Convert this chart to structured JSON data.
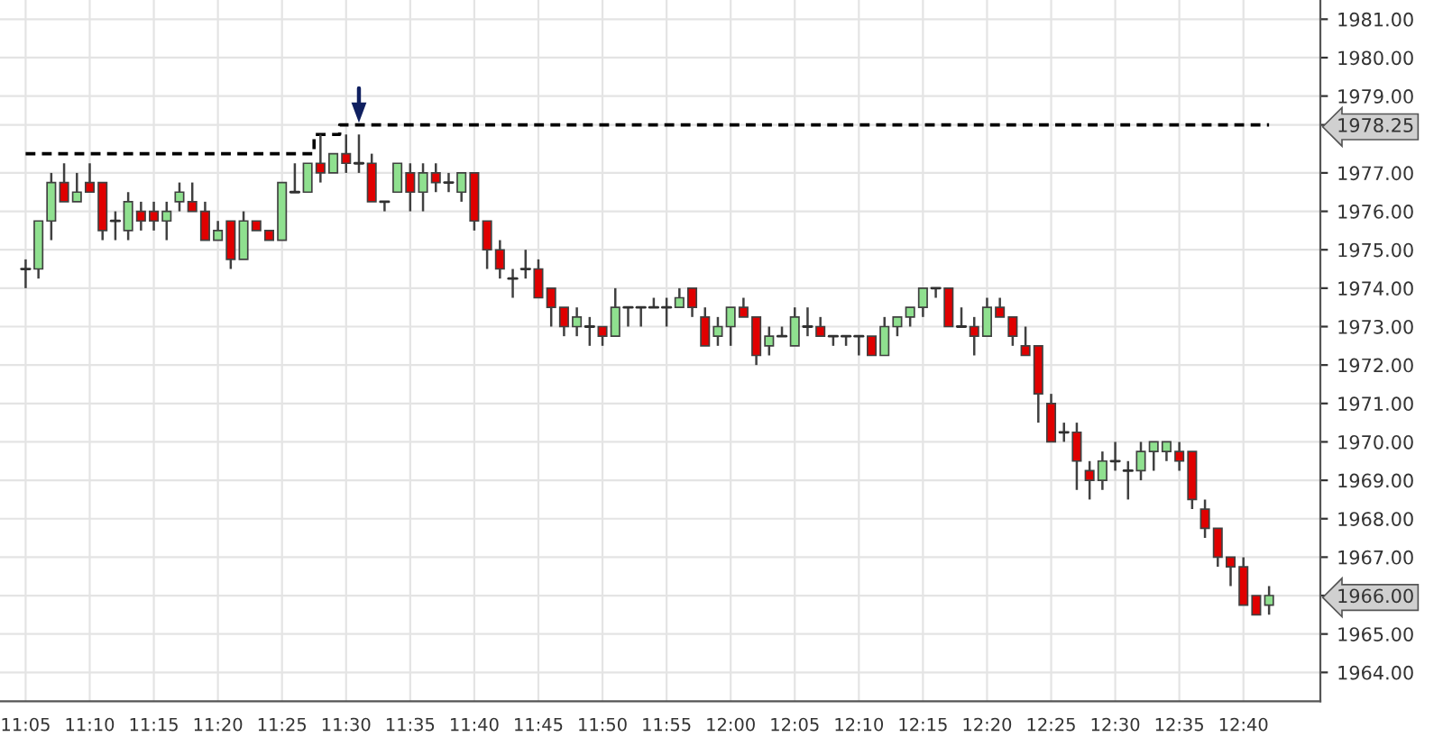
{
  "chart_data": {
    "type": "candlestick",
    "categories": [
      "11:05",
      null,
      null,
      null,
      null,
      "11:10",
      null,
      null,
      null,
      null,
      "11:15",
      null,
      null,
      null,
      null,
      "11:20",
      null,
      null,
      null,
      null,
      "11:25",
      null,
      null,
      null,
      null,
      "11:30",
      null,
      null,
      null,
      null,
      "11:35",
      null,
      null,
      null,
      null,
      "11:40",
      null,
      null,
      null,
      null,
      "11:45",
      null,
      null,
      null,
      null,
      "11:50",
      null,
      null,
      null,
      null,
      "11:55",
      null,
      null,
      null,
      null,
      "12:00",
      null,
      null,
      null,
      null,
      "12:05",
      null,
      null,
      null,
      null,
      "12:10",
      null,
      null,
      null,
      null,
      "12:15",
      null,
      null,
      null,
      null,
      "12:20",
      null,
      null,
      null,
      null,
      "12:25",
      null,
      null,
      null,
      null,
      "12:30",
      null,
      null,
      null,
      null,
      "12:35",
      null,
      null,
      null,
      null,
      "12:40",
      null,
      null
    ],
    "ohlc": [
      [
        1974.5,
        1974.75,
        1974.0,
        1974.5
      ],
      [
        1974.5,
        1975.75,
        1974.25,
        1975.75
      ],
      [
        1975.75,
        1977.0,
        1975.25,
        1976.75
      ],
      [
        1976.75,
        1977.25,
        1976.25,
        1976.25
      ],
      [
        1976.25,
        1977.0,
        1976.25,
        1976.5
      ],
      [
        1976.75,
        1977.25,
        1976.5,
        1976.5
      ],
      [
        1976.75,
        1976.75,
        1975.25,
        1975.5
      ],
      [
        1975.75,
        1976.0,
        1975.25,
        1975.75
      ],
      [
        1975.5,
        1976.5,
        1975.25,
        1976.25
      ],
      [
        1976.0,
        1976.25,
        1975.5,
        1975.75
      ],
      [
        1976.0,
        1976.25,
        1975.5,
        1975.75
      ],
      [
        1975.75,
        1976.25,
        1975.25,
        1976.0
      ],
      [
        1976.25,
        1976.75,
        1976.0,
        1976.5
      ],
      [
        1976.25,
        1976.75,
        1976.0,
        1976.0
      ],
      [
        1976.0,
        1976.25,
        1975.25,
        1975.25
      ],
      [
        1975.25,
        1975.75,
        1975.25,
        1975.5
      ],
      [
        1975.75,
        1975.75,
        1974.5,
        1974.75
      ],
      [
        1974.75,
        1976.0,
        1974.75,
        1975.75
      ],
      [
        1975.75,
        1975.75,
        1975.5,
        1975.5
      ],
      [
        1975.5,
        1975.5,
        1975.25,
        1975.25
      ],
      [
        1975.25,
        1976.75,
        1975.25,
        1976.75
      ],
      [
        1976.5,
        1977.25,
        1976.5,
        1976.5
      ],
      [
        1976.5,
        1977.25,
        1976.5,
        1977.25
      ],
      [
        1977.25,
        1978.0,
        1976.75,
        1977.0
      ],
      [
        1977.0,
        1977.5,
        1977.0,
        1977.5
      ],
      [
        1977.5,
        1978.0,
        1977.0,
        1977.25
      ],
      [
        1977.25,
        1978.0,
        1977.0,
        1977.25
      ],
      [
        1977.25,
        1977.5,
        1976.25,
        1976.25
      ],
      [
        1976.25,
        1976.25,
        1976.0,
        1976.25
      ],
      [
        1976.5,
        1977.25,
        1976.5,
        1977.25
      ],
      [
        1977.0,
        1977.25,
        1976.0,
        1976.5
      ],
      [
        1976.5,
        1977.25,
        1976.0,
        1977.0
      ],
      [
        1977.0,
        1977.25,
        1976.5,
        1976.75
      ],
      [
        1976.75,
        1977.0,
        1976.5,
        1976.75
      ],
      [
        1976.5,
        1977.0,
        1976.25,
        1977.0
      ],
      [
        1977.0,
        1977.0,
        1975.5,
        1975.75
      ],
      [
        1975.75,
        1975.75,
        1974.5,
        1975.0
      ],
      [
        1975.0,
        1975.25,
        1974.25,
        1974.5
      ],
      [
        1974.25,
        1974.5,
        1973.75,
        1974.25
      ],
      [
        1974.5,
        1975.0,
        1974.25,
        1974.5
      ],
      [
        1974.5,
        1974.75,
        1973.75,
        1973.75
      ],
      [
        1974.0,
        1974.0,
        1973.0,
        1973.5
      ],
      [
        1973.5,
        1973.5,
        1972.75,
        1973.0
      ],
      [
        1973.0,
        1973.5,
        1972.75,
        1973.25
      ],
      [
        1973.0,
        1973.25,
        1972.5,
        1973.0
      ],
      [
        1973.0,
        1973.0,
        1972.5,
        1972.75
      ],
      [
        1972.75,
        1974.0,
        1972.75,
        1973.5
      ],
      [
        1973.5,
        1973.5,
        1973.0,
        1973.5
      ],
      [
        1973.5,
        1973.5,
        1973.0,
        1973.5
      ],
      [
        1973.5,
        1973.75,
        1973.5,
        1973.5
      ],
      [
        1973.5,
        1973.75,
        1973.0,
        1973.5
      ],
      [
        1973.5,
        1974.0,
        1973.5,
        1973.75
      ],
      [
        1974.0,
        1974.0,
        1973.25,
        1973.5
      ],
      [
        1973.25,
        1973.5,
        1972.5,
        1972.5
      ],
      [
        1972.75,
        1973.25,
        1972.5,
        1973.0
      ],
      [
        1973.0,
        1973.5,
        1972.5,
        1973.5
      ],
      [
        1973.5,
        1973.75,
        1973.25,
        1973.25
      ],
      [
        1973.25,
        1973.25,
        1972.0,
        1972.25
      ],
      [
        1972.5,
        1973.0,
        1972.25,
        1972.75
      ],
      [
        1972.75,
        1973.0,
        1972.75,
        1972.75
      ],
      [
        1972.5,
        1973.5,
        1972.5,
        1973.25
      ],
      [
        1973.0,
        1973.5,
        1972.75,
        1973.0
      ],
      [
        1973.0,
        1973.25,
        1972.75,
        1972.75
      ],
      [
        1972.75,
        1972.75,
        1972.5,
        1972.75
      ],
      [
        1972.75,
        1972.75,
        1972.5,
        1972.75
      ],
      [
        1972.75,
        1972.75,
        1972.25,
        1972.75
      ],
      [
        1972.75,
        1972.75,
        1972.25,
        1972.25
      ],
      [
        1972.25,
        1973.25,
        1972.25,
        1973.0
      ],
      [
        1973.0,
        1973.25,
        1972.75,
        1973.25
      ],
      [
        1973.25,
        1973.5,
        1973.0,
        1973.5
      ],
      [
        1973.5,
        1974.0,
        1973.25,
        1974.0
      ],
      [
        1974.0,
        1974.0,
        1973.75,
        1974.0
      ],
      [
        1974.0,
        1974.0,
        1973.0,
        1973.0
      ],
      [
        1973.0,
        1973.5,
        1973.0,
        1973.0
      ],
      [
        1973.0,
        1973.25,
        1972.25,
        1972.75
      ],
      [
        1972.75,
        1973.75,
        1972.75,
        1973.5
      ],
      [
        1973.5,
        1973.75,
        1973.25,
        1973.25
      ],
      [
        1973.25,
        1973.25,
        1972.5,
        1972.75
      ],
      [
        1972.5,
        1973.0,
        1972.25,
        1972.25
      ],
      [
        1972.5,
        1972.5,
        1970.5,
        1971.25
      ],
      [
        1971.0,
        1971.25,
        1970.0,
        1970.0
      ],
      [
        1970.25,
        1970.5,
        1970.0,
        1970.25
      ],
      [
        1970.25,
        1970.5,
        1968.75,
        1969.5
      ],
      [
        1969.25,
        1969.5,
        1968.5,
        1969.0
      ],
      [
        1969.0,
        1969.75,
        1968.75,
        1969.5
      ],
      [
        1969.5,
        1970.0,
        1969.25,
        1969.5
      ],
      [
        1969.25,
        1969.5,
        1968.5,
        1969.25
      ],
      [
        1969.25,
        1970.0,
        1969.0,
        1969.75
      ],
      [
        1969.75,
        1970.0,
        1969.25,
        1970.0
      ],
      [
        1969.75,
        1970.0,
        1969.5,
        1970.0
      ],
      [
        1969.75,
        1970.0,
        1969.25,
        1969.5
      ],
      [
        1969.75,
        1969.75,
        1968.25,
        1968.5
      ],
      [
        1968.25,
        1968.5,
        1967.5,
        1967.75
      ],
      [
        1967.75,
        1967.75,
        1966.75,
        1967.0
      ],
      [
        1967.0,
        1967.0,
        1966.25,
        1966.75
      ],
      [
        1966.75,
        1967.0,
        1965.75,
        1965.75
      ],
      [
        1966.0,
        1966.0,
        1965.5,
        1965.5
      ],
      [
        1965.75,
        1966.25,
        1965.5,
        1966.0
      ]
    ],
    "colors": [
      "#303030",
      "#8fe08f",
      "#8fe08f",
      "#e00000",
      "#8fe08f",
      "#e00000",
      "#e00000",
      "#303030",
      "#8fe08f",
      "#e00000",
      "#e00000",
      "#8fe08f",
      "#8fe08f",
      "#e00000",
      "#e00000",
      "#8fe08f",
      "#e00000",
      "#8fe08f",
      "#e00000",
      "#e00000",
      "#8fe08f",
      "#303030",
      "#8fe08f",
      "#e00000",
      "#8fe08f",
      "#e00000",
      "#303030",
      "#e00000",
      "#303030",
      "#8fe08f",
      "#e00000",
      "#8fe08f",
      "#e00000",
      "#303030",
      "#8fe08f",
      "#e00000",
      "#e00000",
      "#e00000",
      "#303030",
      "#303030",
      "#e00000",
      "#e00000",
      "#e00000",
      "#8fe08f",
      "#303030",
      "#e00000",
      "#8fe08f",
      "#303030",
      "#303030",
      "#303030",
      "#303030",
      "#8fe08f",
      "#e00000",
      "#e00000",
      "#8fe08f",
      "#8fe08f",
      "#e00000",
      "#e00000",
      "#8fe08f",
      "#303030",
      "#8fe08f",
      "#303030",
      "#e00000",
      "#303030",
      "#303030",
      "#303030",
      "#e00000",
      "#8fe08f",
      "#8fe08f",
      "#8fe08f",
      "#8fe08f",
      "#303030",
      "#e00000",
      "#303030",
      "#e00000",
      "#8fe08f",
      "#e00000",
      "#e00000",
      "#e00000",
      "#e00000",
      "#e00000",
      "#303030",
      "#e00000",
      "#e00000",
      "#8fe08f",
      "#303030",
      "#303030",
      "#8fe08f",
      "#8fe08f",
      "#8fe08f",
      "#e00000",
      "#e00000",
      "#e00000",
      "#e00000",
      "#e00000",
      "#e00000",
      "#e00000",
      "#8fe08f"
    ],
    "series": [
      {
        "type": "step",
        "color": "#000000",
        "line_style": "dashed",
        "values": [
          1977.5,
          1977.5,
          1977.5,
          1977.5,
          1977.5,
          1977.5,
          1977.5,
          1977.5,
          1977.5,
          1977.5,
          1977.5,
          1977.5,
          1977.5,
          1977.5,
          1977.5,
          1977.5,
          1977.5,
          1977.5,
          1977.5,
          1977.5,
          1977.5,
          1977.5,
          1977.5,
          1978.0,
          1978.0,
          1978.25,
          1978.25,
          1978.25,
          1978.25,
          1978.25,
          1978.25,
          1978.25,
          1978.25,
          1978.25,
          1978.25,
          1978.25,
          1978.25,
          1978.25,
          1978.25,
          1978.25,
          1978.25,
          1978.25,
          1978.25,
          1978.25,
          1978.25,
          1978.25,
          1978.25,
          1978.25,
          1978.25,
          1978.25,
          1978.25,
          1978.25,
          1978.25,
          1978.25,
          1978.25,
          1978.25,
          1978.25,
          1978.25,
          1978.25,
          1978.25,
          1978.25,
          1978.25,
          1978.25,
          1978.25,
          1978.25,
          1978.25,
          1978.25,
          1978.25,
          1978.25,
          1978.25,
          1978.25,
          1978.25,
          1978.25,
          1978.25,
          1978.25,
          1978.25,
          1978.25,
          1978.25,
          1978.25,
          1978.25,
          1978.25,
          1978.25,
          1978.25,
          1978.25,
          1978.25,
          1978.25,
          1978.25,
          1978.25,
          1978.25,
          1978.25,
          1978.25,
          1978.25,
          1978.25,
          1978.25,
          1978.25,
          1978.25,
          1978.25,
          1978.25
        ]
      }
    ],
    "ylim": [
      1963.25,
      1981.5
    ],
    "yticks": [
      {
        "value": 1964,
        "label": "1964.00"
      },
      {
        "value": 1965,
        "label": "1965.00"
      },
      {
        "value": 1966,
        "label": "1966.00"
      },
      {
        "value": 1967,
        "label": "1967.00"
      },
      {
        "value": 1968,
        "label": "1968.00"
      },
      {
        "value": 1969,
        "label": "1969.00"
      },
      {
        "value": 1970,
        "label": "1970.00"
      },
      {
        "value": 1971,
        "label": "1971.00"
      },
      {
        "value": 1972,
        "label": "1972.00"
      },
      {
        "value": 1973,
        "label": "1973.00"
      },
      {
        "value": 1974,
        "label": "1974.00"
      },
      {
        "value": 1975,
        "label": "1975.00"
      },
      {
        "value": 1976,
        "label": "1976.00"
      },
      {
        "value": 1977,
        "label": "1977.00"
      },
      {
        "value": 1978.25,
        "label": "1978.25"
      },
      {
        "value": 1979,
        "label": "1979.00"
      },
      {
        "value": 1980,
        "label": "1980.00"
      },
      {
        "value": 1981,
        "label": "1981.00"
      }
    ],
    "grid": true
  }
}
